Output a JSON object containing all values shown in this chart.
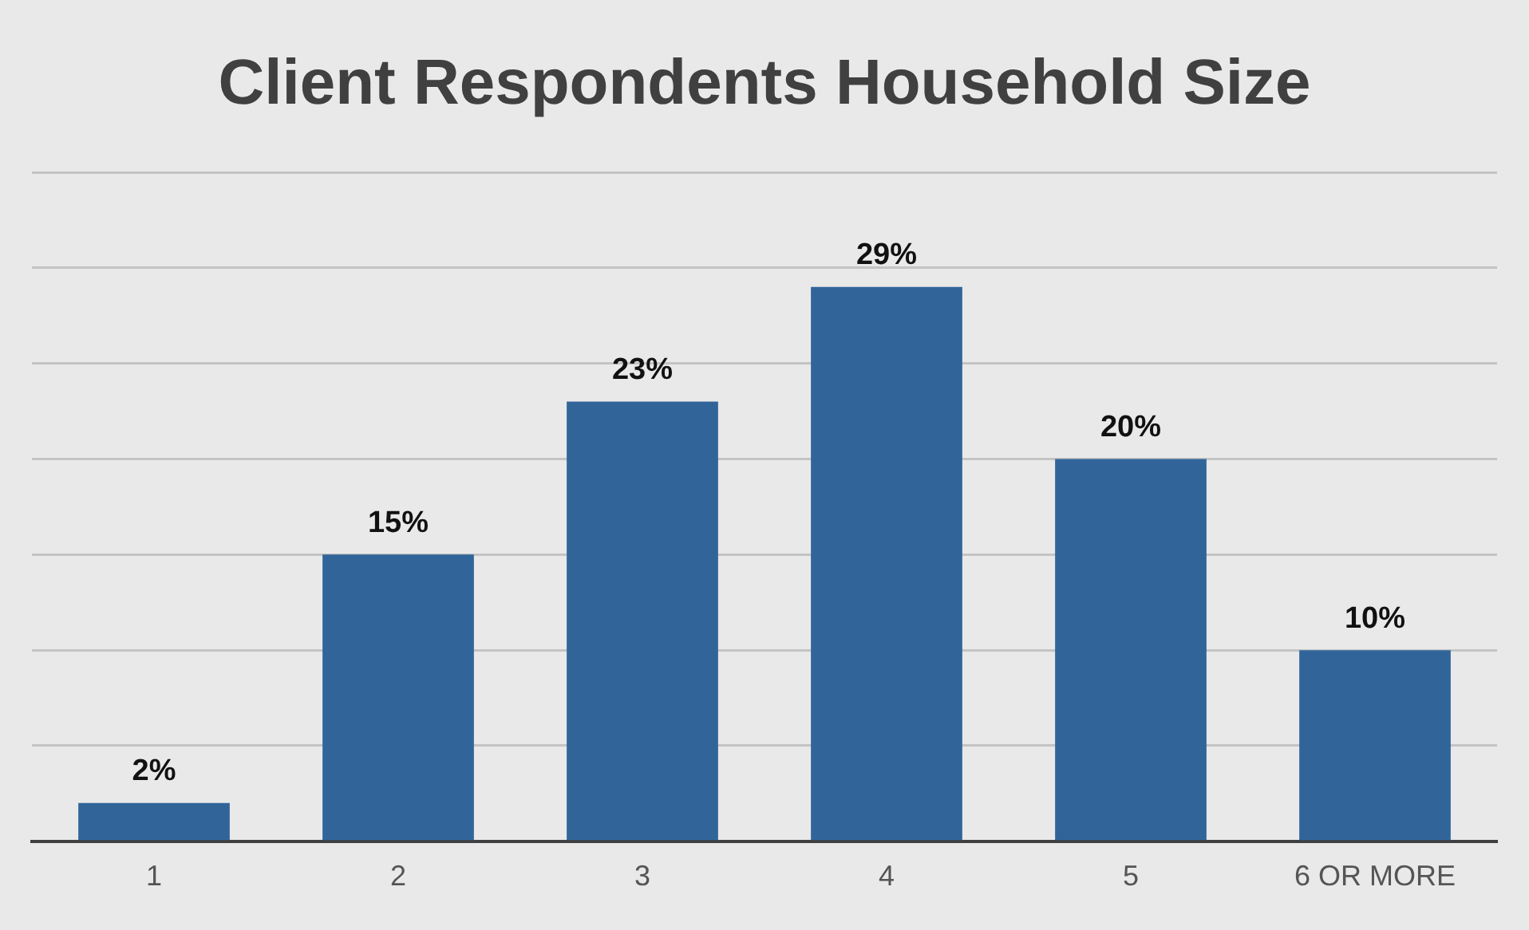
{
  "chart_data": {
    "type": "bar",
    "title": "Client Respondents Household Size",
    "categories": [
      "1",
      "2",
      "3",
      "4",
      "5",
      "6 OR MORE"
    ],
    "values": [
      2,
      15,
      23,
      29,
      20,
      10
    ],
    "value_labels": [
      "2%",
      "15%",
      "23%",
      "29%",
      "20%",
      "10%"
    ],
    "color": "#31659a",
    "ylim": [
      0,
      35
    ],
    "yticks": [
      {
        "value": 0,
        "label": null
      },
      {
        "value": 5,
        "label": null
      },
      {
        "value": 10,
        "label": null
      },
      {
        "value": 15,
        "label": null
      },
      {
        "value": 20,
        "label": null
      },
      {
        "value": 25,
        "label": null
      },
      {
        "value": 30,
        "label": null
      },
      {
        "value": 35,
        "label": null
      }
    ],
    "grid": "y",
    "tick_labels": "x"
  }
}
